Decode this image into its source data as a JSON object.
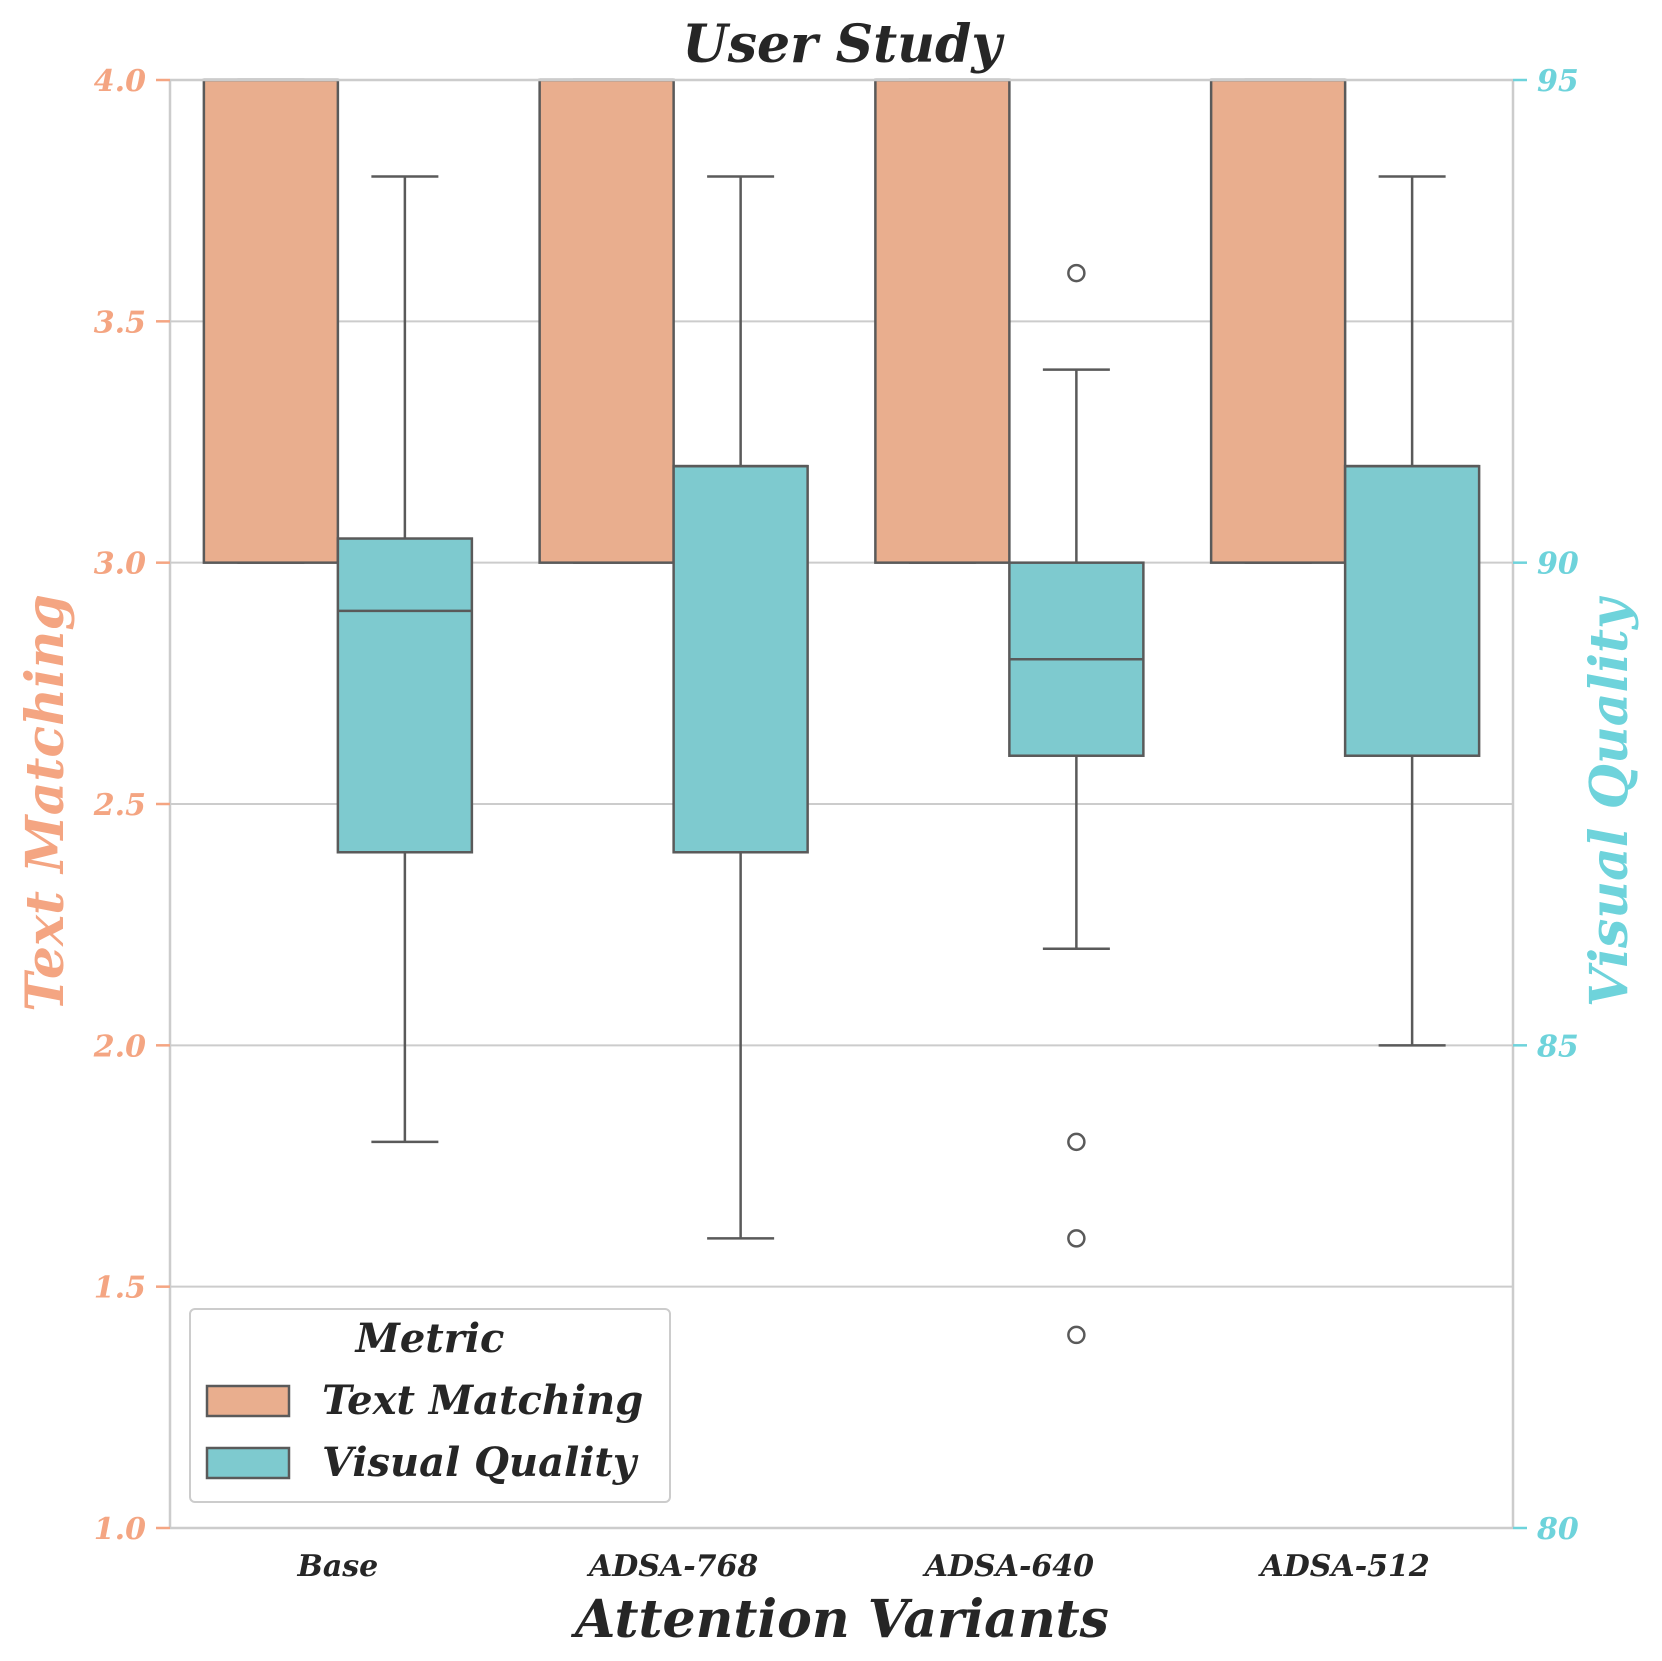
{
  "chart_data": {
    "type": "box",
    "title": "User Study",
    "xlabel": "Attention Variants",
    "ylabel_left": "Text Matching",
    "ylabel_right": "Visual Quality",
    "categories": [
      "Base",
      "ADSA-768",
      "ADSA-640",
      "ADSA-512"
    ],
    "ylim_left": [
      1.0,
      4.0
    ],
    "yticks_left": [
      "1.0",
      "1.5",
      "2.0",
      "2.5",
      "3.0",
      "3.5",
      "4.0"
    ],
    "ylim_right": [
      80,
      95
    ],
    "yticks_right": [
      "80",
      "85",
      "90",
      "95"
    ],
    "grid": true,
    "legend": {
      "title": "Metric",
      "placement": "lower-left",
      "entries": [
        "Text Matching",
        "Visual Quality"
      ]
    },
    "colors": {
      "text_matching": "#E9AE8E",
      "visual_quality": "#7ECACF",
      "left_axis": "#F4A582",
      "right_axis": "#6ED3DB",
      "outline": "#5a5a5a"
    },
    "series": [
      {
        "name": "Text Matching",
        "axis": "left",
        "boxes": [
          {
            "category": "Base",
            "min": 3.0,
            "q1": 3.0,
            "median": 4.0,
            "q3": 4.0,
            "max": 4.0,
            "outliers": []
          },
          {
            "category": "ADSA-768",
            "min": 3.0,
            "q1": 3.0,
            "median": 4.0,
            "q3": 4.0,
            "max": 4.0,
            "outliers": []
          },
          {
            "category": "ADSA-640",
            "min": 3.0,
            "q1": 3.0,
            "median": 4.0,
            "q3": 4.0,
            "max": 4.0,
            "outliers": []
          },
          {
            "category": "ADSA-512",
            "min": 3.0,
            "q1": 3.0,
            "median": 4.0,
            "q3": 4.0,
            "max": 4.0,
            "outliers": []
          }
        ]
      },
      {
        "name": "Visual Quality",
        "axis": "right",
        "boxes": [
          {
            "category": "Base",
            "min": 84.0,
            "q1": 87.0,
            "median": 89.5,
            "q3": 90.25,
            "max": 94.0,
            "outliers": []
          },
          {
            "category": "ADSA-768",
            "min": 83.0,
            "q1": 87.0,
            "median": 91.0,
            "q3": 91.0,
            "max": 94.0,
            "outliers": []
          },
          {
            "category": "ADSA-640",
            "min": 86.0,
            "q1": 88.0,
            "median": 89.0,
            "q3": 90.0,
            "max": 92.0,
            "outliers": [
              93.0,
              84.0,
              83.0,
              82.0
            ]
          },
          {
            "category": "ADSA-512",
            "min": 85.0,
            "q1": 88.0,
            "median": 91.0,
            "q3": 91.0,
            "max": 94.0,
            "outliers": []
          }
        ]
      }
    ]
  }
}
